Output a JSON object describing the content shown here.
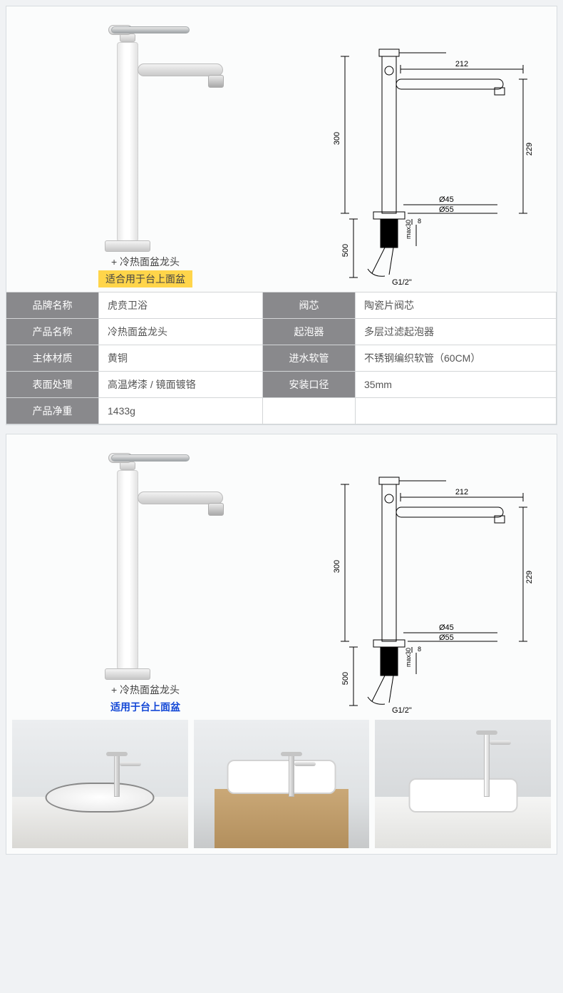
{
  "caption": {
    "title": "+ 冷热面盆龙头",
    "sub_gold": "适合用于台上面盆",
    "sub_blue": "适用于台上面盆"
  },
  "schematic": {
    "dims": {
      "total_h_body": "300",
      "spout_reach": "212",
      "spout_height": "229",
      "below_deck": "500",
      "thread_len": "max30",
      "deck_gap": "8",
      "hole_d1": "Ø45",
      "hole_d2": "Ø55",
      "inlet": "G1/2\""
    },
    "colors": {
      "stroke": "#000000",
      "fill": "#000000",
      "line_w": 1
    }
  },
  "specs": {
    "rows": [
      {
        "k1": "品牌名称",
        "v1": "虎贲卫浴",
        "k2": "阀芯",
        "v2": "陶瓷片阀芯"
      },
      {
        "k1": "产品名称",
        "v1": "冷热面盆龙头",
        "k2": "起泡器",
        "v2": "多层过滤起泡器"
      },
      {
        "k1": "主体材质",
        "v1": "黄铜",
        "k2": "进水软管",
        "v2": "不锈钢编织软管（60CM）"
      },
      {
        "k1": "表面处理",
        "v1": "高温烤漆 / 镜面镀铬",
        "k2": "安装口径",
        "v2": "35mm"
      },
      {
        "k1": "产品净重",
        "v1": "1433g",
        "k2": "",
        "v2": ""
      }
    ]
  },
  "colors": {
    "header_bg": "#89898c",
    "page_bg": "#f0f2f4",
    "panel_bg": "#fbfcfc",
    "border": "#d8dde0",
    "gold": "#ffd54a",
    "blue": "#1448d6"
  }
}
